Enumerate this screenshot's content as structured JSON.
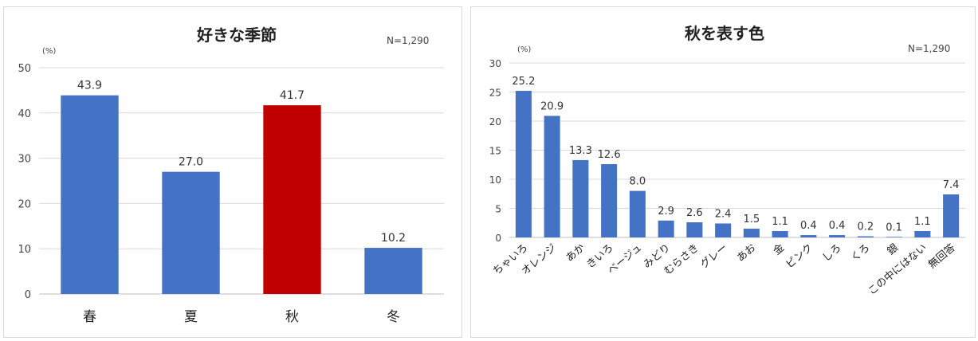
{
  "chart_data": [
    {
      "type": "bar",
      "title": "好きな季節",
      "note": "N=1,290",
      "unit_label": "(%)",
      "categories": [
        "春",
        "夏",
        "秋",
        "冬"
      ],
      "values": [
        43.9,
        27.0,
        41.7,
        10.2
      ],
      "value_labels": [
        "43.9",
        "27.0",
        "41.7",
        "10.2"
      ],
      "colors": [
        "#4472C4",
        "#4472C4",
        "#C00000",
        "#4472C4"
      ],
      "ylim": [
        0,
        50
      ],
      "yticks": [
        0,
        10,
        20,
        30,
        40,
        50
      ],
      "grid": true
    },
    {
      "type": "bar",
      "title": "秋を表す色",
      "note": "N=1,290",
      "unit_label": "(%)",
      "categories": [
        "ちゃいろ",
        "オレンジ",
        "あか",
        "きいろ",
        "ベージュ",
        "みどり",
        "むらさき",
        "グレー",
        "あお",
        "金",
        "ピンク",
        "しろ",
        "くろ",
        "銀",
        "この中にはない",
        "無回答"
      ],
      "values": [
        25.2,
        20.9,
        13.3,
        12.6,
        8.0,
        2.9,
        2.6,
        2.4,
        1.5,
        1.1,
        0.4,
        0.4,
        0.2,
        0.1,
        1.1,
        7.4
      ],
      "value_labels": [
        "25.2",
        "20.9",
        "13.3",
        "12.6",
        "8.0",
        "2.9",
        "2.6",
        "2.4",
        "1.5",
        "1.1",
        "0.4",
        "0.4",
        "0.2",
        "0.1",
        "1.1",
        "7.4"
      ],
      "colors": [
        "#4472C4"
      ],
      "ylim": [
        0,
        30
      ],
      "yticks": [
        0,
        5,
        10,
        15,
        20,
        25,
        30
      ],
      "grid": true
    }
  ]
}
